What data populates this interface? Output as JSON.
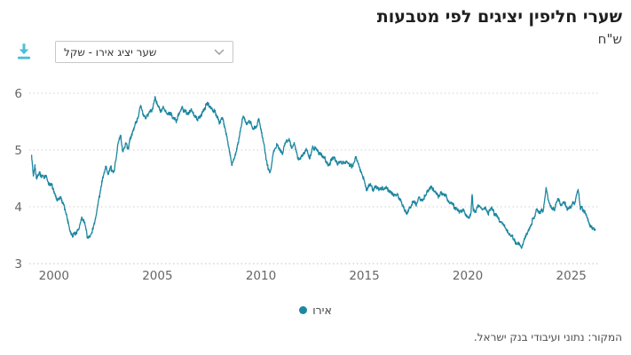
{
  "header": {
    "title": "שערי חליפין יציגים לפי מטבעות",
    "unit": "ש\"ח"
  },
  "controls": {
    "download_icon": "download-icon",
    "series_select": {
      "value": "שער יציג אירו - שקל",
      "chevron_icon": "chevron-down-icon"
    }
  },
  "legend": {
    "label": "אירו"
  },
  "source": "המקור: נתוני ועיבודי בנק ישראל.",
  "colors": {
    "line": "#1e87a0",
    "accent": "#4cbfdc",
    "grid": "#cfcfcf",
    "axis_bottom": "#c2c2c2",
    "axis_text": "#666666"
  },
  "chart_data": {
    "type": "line",
    "title": "שערי חליפין יציגים לפי מטבעות",
    "xlabel": "",
    "ylabel": "ש\"ח",
    "xlim": [
      1998.85,
      2026.3
    ],
    "ylim": [
      3,
      6
    ],
    "x_ticks": [
      2000,
      2005,
      2010,
      2015,
      2020,
      2025
    ],
    "y_ticks": [
      3,
      4,
      5,
      6
    ],
    "grid": "horizontal-dotted",
    "legend_position": "bottom-center",
    "series": [
      {
        "name": "אירו",
        "points": [
          [
            1998.92,
            4.88
          ],
          [
            1999.0,
            4.52
          ],
          [
            1999.08,
            4.74
          ],
          [
            1999.17,
            4.48
          ],
          [
            1999.3,
            4.6
          ],
          [
            1999.45,
            4.52
          ],
          [
            1999.6,
            4.56
          ],
          [
            1999.75,
            4.42
          ],
          [
            1999.9,
            4.38
          ],
          [
            2000.05,
            4.22
          ],
          [
            2000.2,
            4.12
          ],
          [
            2000.33,
            4.2
          ],
          [
            2000.45,
            4.05
          ],
          [
            2000.6,
            3.9
          ],
          [
            2000.75,
            3.62
          ],
          [
            2000.9,
            3.5
          ],
          [
            2001.05,
            3.55
          ],
          [
            2001.2,
            3.62
          ],
          [
            2001.35,
            3.82
          ],
          [
            2001.5,
            3.68
          ],
          [
            2001.62,
            3.45
          ],
          [
            2001.75,
            3.5
          ],
          [
            2001.9,
            3.62
          ],
          [
            2002.05,
            3.88
          ],
          [
            2002.2,
            4.18
          ],
          [
            2002.35,
            4.5
          ],
          [
            2002.5,
            4.72
          ],
          [
            2002.62,
            4.55
          ],
          [
            2002.75,
            4.68
          ],
          [
            2002.9,
            4.62
          ],
          [
            2003.0,
            4.85
          ],
          [
            2003.12,
            5.18
          ],
          [
            2003.22,
            5.28
          ],
          [
            2003.32,
            4.95
          ],
          [
            2003.45,
            5.1
          ],
          [
            2003.6,
            5.05
          ],
          [
            2003.75,
            5.28
          ],
          [
            2003.9,
            5.42
          ],
          [
            2004.05,
            5.58
          ],
          [
            2004.18,
            5.78
          ],
          [
            2004.3,
            5.62
          ],
          [
            2004.45,
            5.55
          ],
          [
            2004.6,
            5.68
          ],
          [
            2004.75,
            5.72
          ],
          [
            2004.88,
            5.94
          ],
          [
            2005.0,
            5.78
          ],
          [
            2005.15,
            5.68
          ],
          [
            2005.3,
            5.76
          ],
          [
            2005.45,
            5.62
          ],
          [
            2005.6,
            5.66
          ],
          [
            2005.75,
            5.55
          ],
          [
            2005.9,
            5.52
          ],
          [
            2006.05,
            5.62
          ],
          [
            2006.2,
            5.74
          ],
          [
            2006.35,
            5.68
          ],
          [
            2006.5,
            5.64
          ],
          [
            2006.65,
            5.72
          ],
          [
            2006.8,
            5.62
          ],
          [
            2006.95,
            5.56
          ],
          [
            2007.1,
            5.62
          ],
          [
            2007.25,
            5.72
          ],
          [
            2007.4,
            5.8
          ],
          [
            2007.55,
            5.76
          ],
          [
            2007.7,
            5.7
          ],
          [
            2007.85,
            5.62
          ],
          [
            2008.0,
            5.48
          ],
          [
            2008.15,
            5.58
          ],
          [
            2008.3,
            5.32
          ],
          [
            2008.45,
            5.05
          ],
          [
            2008.6,
            4.75
          ],
          [
            2008.75,
            4.92
          ],
          [
            2008.9,
            5.12
          ],
          [
            2009.0,
            5.35
          ],
          [
            2009.15,
            5.6
          ],
          [
            2009.3,
            5.45
          ],
          [
            2009.45,
            5.52
          ],
          [
            2009.6,
            5.38
          ],
          [
            2009.75,
            5.42
          ],
          [
            2009.9,
            5.52
          ],
          [
            2010.0,
            5.35
          ],
          [
            2010.15,
            5.1
          ],
          [
            2010.3,
            4.75
          ],
          [
            2010.45,
            4.62
          ],
          [
            2010.6,
            4.95
          ],
          [
            2010.75,
            5.1
          ],
          [
            2010.9,
            5.0
          ],
          [
            2011.05,
            4.95
          ],
          [
            2011.2,
            5.12
          ],
          [
            2011.35,
            5.2
          ],
          [
            2011.5,
            5.05
          ],
          [
            2011.62,
            5.15
          ],
          [
            2011.75,
            4.9
          ],
          [
            2011.9,
            4.85
          ],
          [
            2012.05,
            4.9
          ],
          [
            2012.2,
            5.0
          ],
          [
            2012.35,
            4.85
          ],
          [
            2012.5,
            5.05
          ],
          [
            2012.65,
            5.0
          ],
          [
            2012.8,
            4.95
          ],
          [
            2012.95,
            4.9
          ],
          [
            2013.1,
            4.85
          ],
          [
            2013.25,
            4.75
          ],
          [
            2013.4,
            4.8
          ],
          [
            2013.55,
            4.85
          ],
          [
            2013.7,
            4.75
          ],
          [
            2013.85,
            4.8
          ],
          [
            2014.0,
            4.75
          ],
          [
            2014.15,
            4.8
          ],
          [
            2014.3,
            4.7
          ],
          [
            2014.45,
            4.75
          ],
          [
            2014.6,
            4.85
          ],
          [
            2014.75,
            4.7
          ],
          [
            2014.9,
            4.55
          ],
          [
            2015.0,
            4.45
          ],
          [
            2015.1,
            4.28
          ],
          [
            2015.25,
            4.42
          ],
          [
            2015.4,
            4.3
          ],
          [
            2015.55,
            4.35
          ],
          [
            2015.7,
            4.28
          ],
          [
            2015.85,
            4.32
          ],
          [
            2016.0,
            4.35
          ],
          [
            2016.15,
            4.3
          ],
          [
            2016.3,
            4.25
          ],
          [
            2016.45,
            4.22
          ],
          [
            2016.6,
            4.2
          ],
          [
            2016.75,
            4.12
          ],
          [
            2016.9,
            4.02
          ],
          [
            2017.05,
            3.88
          ],
          [
            2017.2,
            3.98
          ],
          [
            2017.35,
            4.08
          ],
          [
            2017.5,
            4.02
          ],
          [
            2017.65,
            4.18
          ],
          [
            2017.8,
            4.12
          ],
          [
            2017.95,
            4.18
          ],
          [
            2018.1,
            4.3
          ],
          [
            2018.25,
            4.35
          ],
          [
            2018.4,
            4.25
          ],
          [
            2018.55,
            4.18
          ],
          [
            2018.7,
            4.25
          ],
          [
            2018.85,
            4.2
          ],
          [
            2019.0,
            4.15
          ],
          [
            2019.15,
            4.08
          ],
          [
            2019.3,
            4.02
          ],
          [
            2019.45,
            3.98
          ],
          [
            2019.6,
            3.92
          ],
          [
            2019.75,
            3.95
          ],
          [
            2019.9,
            3.88
          ],
          [
            2020.05,
            3.82
          ],
          [
            2020.16,
            3.9
          ],
          [
            2020.21,
            4.23
          ],
          [
            2020.26,
            3.92
          ],
          [
            2020.4,
            3.95
          ],
          [
            2020.55,
            4.02
          ],
          [
            2020.7,
            3.95
          ],
          [
            2020.85,
            4.0
          ],
          [
            2021.0,
            3.9
          ],
          [
            2021.15,
            3.95
          ],
          [
            2021.3,
            3.88
          ],
          [
            2021.45,
            3.8
          ],
          [
            2021.6,
            3.74
          ],
          [
            2021.75,
            3.68
          ],
          [
            2021.9,
            3.58
          ],
          [
            2022.05,
            3.5
          ],
          [
            2022.2,
            3.44
          ],
          [
            2022.35,
            3.38
          ],
          [
            2022.5,
            3.34
          ],
          [
            2022.62,
            3.27
          ],
          [
            2022.75,
            3.44
          ],
          [
            2022.9,
            3.56
          ],
          [
            2023.05,
            3.7
          ],
          [
            2023.2,
            3.8
          ],
          [
            2023.35,
            3.98
          ],
          [
            2023.5,
            3.9
          ],
          [
            2023.65,
            3.95
          ],
          [
            2023.78,
            4.32
          ],
          [
            2023.9,
            4.12
          ],
          [
            2024.05,
            4.0
          ],
          [
            2024.2,
            3.94
          ],
          [
            2024.35,
            4.15
          ],
          [
            2024.5,
            4.04
          ],
          [
            2024.65,
            4.1
          ],
          [
            2024.8,
            3.94
          ],
          [
            2024.95,
            4.0
          ],
          [
            2025.1,
            4.06
          ],
          [
            2025.22,
            4.12
          ],
          [
            2025.33,
            4.28
          ],
          [
            2025.45,
            3.98
          ],
          [
            2025.6,
            3.94
          ],
          [
            2025.75,
            3.84
          ],
          [
            2025.9,
            3.7
          ],
          [
            2026.05,
            3.62
          ],
          [
            2026.18,
            3.58
          ]
        ]
      }
    ]
  }
}
